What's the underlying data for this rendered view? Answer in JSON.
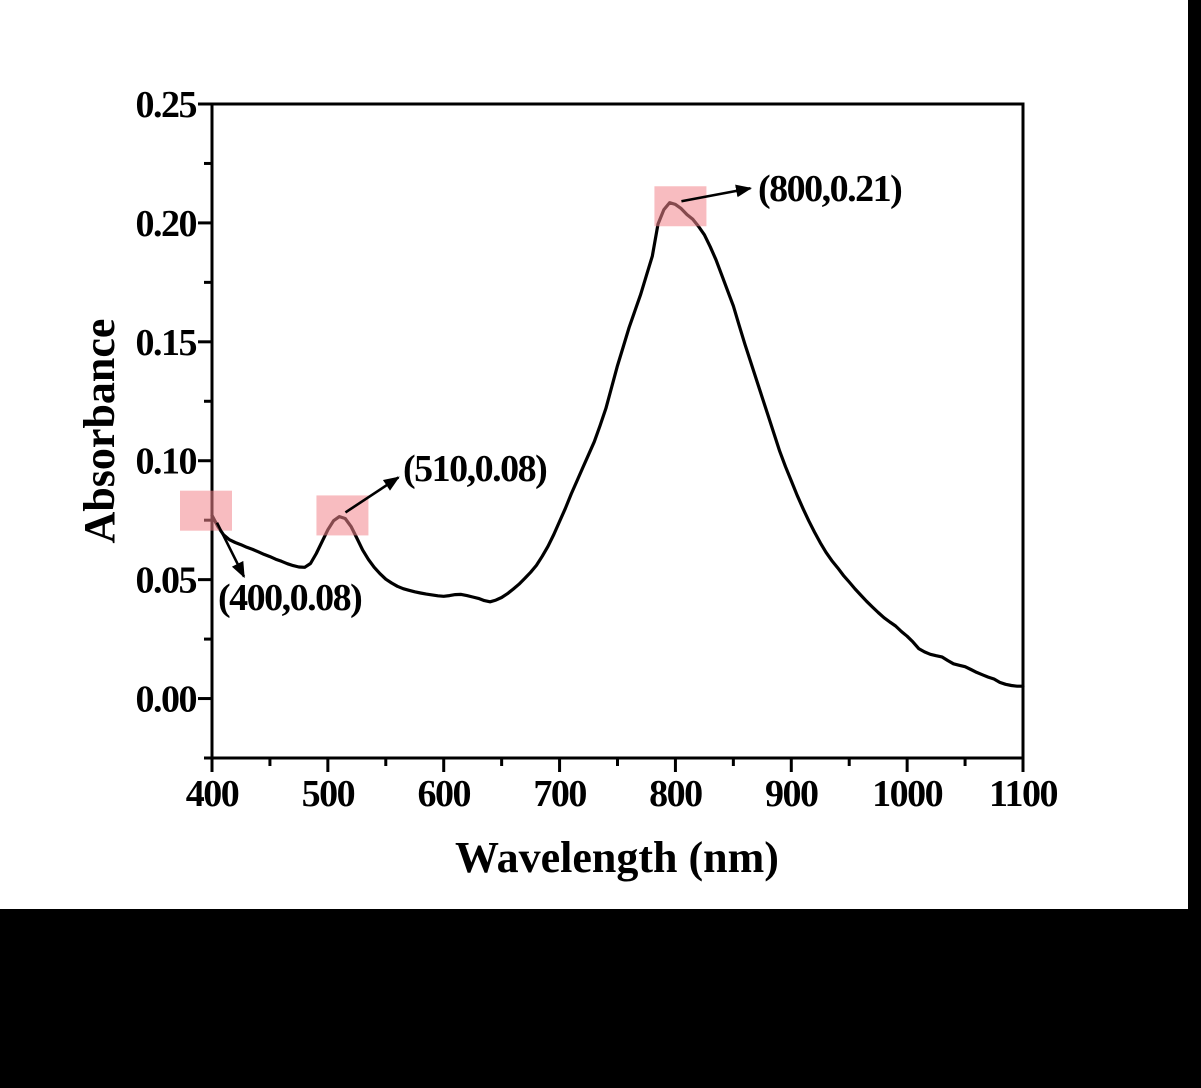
{
  "figure": {
    "page_background": "#000000",
    "plot_background": "#ffffff",
    "axis_color": "#000000"
  },
  "chart_data": {
    "type": "line",
    "title": "",
    "xlabel": "Wavelength (nm)",
    "ylabel": "Absorbance",
    "xlim": [
      400,
      1100
    ],
    "ylim": [
      -0.025,
      0.25
    ],
    "grid": false,
    "legend": null,
    "x_ticks": {
      "major": [
        400,
        500,
        600,
        700,
        800,
        900,
        1000,
        1100
      ],
      "labels": [
        "400",
        "500",
        "600",
        "700",
        "800",
        "900",
        "1000",
        "1100"
      ],
      "minor": [
        450,
        550,
        650,
        750,
        850,
        950,
        1050
      ]
    },
    "y_ticks": {
      "major": [
        0.0,
        0.05,
        0.1,
        0.15,
        0.2,
        0.25
      ],
      "labels": [
        "0.00",
        "0.05",
        "0.10",
        "0.15",
        "0.20",
        "0.25"
      ],
      "minor": [
        -0.025,
        0.025,
        0.075,
        0.125,
        0.175,
        0.225
      ]
    },
    "series": [
      {
        "name": "absorbance-spectrum",
        "color": "#000000",
        "points": [
          [
            400,
            0.077
          ],
          [
            405,
            0.0724
          ],
          [
            410,
            0.0688
          ],
          [
            415,
            0.0668
          ],
          [
            420,
            0.0656
          ],
          [
            425,
            0.0647
          ],
          [
            430,
            0.0636
          ],
          [
            435,
            0.0627
          ],
          [
            440,
            0.0617
          ],
          [
            445,
            0.0606
          ],
          [
            450,
            0.0597
          ],
          [
            455,
            0.0586
          ],
          [
            460,
            0.0577
          ],
          [
            465,
            0.0567
          ],
          [
            470,
            0.0559
          ],
          [
            475,
            0.0553
          ],
          [
            480,
            0.0552
          ],
          [
            485,
            0.0568
          ],
          [
            490,
            0.061
          ],
          [
            495,
            0.066
          ],
          [
            500,
            0.071
          ],
          [
            505,
            0.0748
          ],
          [
            510,
            0.0765
          ],
          [
            515,
            0.0757
          ],
          [
            520,
            0.0724
          ],
          [
            525,
            0.0675
          ],
          [
            530,
            0.0625
          ],
          [
            535,
            0.0585
          ],
          [
            540,
            0.0552
          ],
          [
            545,
            0.0525
          ],
          [
            550,
            0.0502
          ],
          [
            555,
            0.0486
          ],
          [
            560,
            0.0472
          ],
          [
            565,
            0.0462
          ],
          [
            570,
            0.0455
          ],
          [
            575,
            0.0449
          ],
          [
            580,
            0.0444
          ],
          [
            585,
            0.0439
          ],
          [
            590,
            0.0436
          ],
          [
            595,
            0.0432
          ],
          [
            600,
            0.043
          ],
          [
            605,
            0.0433
          ],
          [
            610,
            0.0437
          ],
          [
            615,
            0.0438
          ],
          [
            620,
            0.0433
          ],
          [
            625,
            0.0427
          ],
          [
            630,
            0.0421
          ],
          [
            635,
            0.0412
          ],
          [
            640,
            0.0407
          ],
          [
            645,
            0.0414
          ],
          [
            650,
            0.0425
          ],
          [
            655,
            0.0441
          ],
          [
            660,
            0.046
          ],
          [
            665,
            0.0481
          ],
          [
            670,
            0.0505
          ],
          [
            675,
            0.0531
          ],
          [
            680,
            0.056
          ],
          [
            685,
            0.0598
          ],
          [
            690,
            0.064
          ],
          [
            695,
            0.069
          ],
          [
            700,
            0.0745
          ],
          [
            705,
            0.08
          ],
          [
            710,
            0.086
          ],
          [
            715,
            0.0915
          ],
          [
            720,
            0.097
          ],
          [
            725,
            0.1025
          ],
          [
            730,
            0.108
          ],
          [
            735,
            0.1148
          ],
          [
            740,
            0.122
          ],
          [
            745,
            0.131
          ],
          [
            750,
            0.14
          ],
          [
            755,
            0.148
          ],
          [
            760,
            0.156
          ],
          [
            765,
            0.163
          ],
          [
            770,
            0.17
          ],
          [
            775,
            0.178
          ],
          [
            780,
            0.186
          ],
          [
            785,
            0.1995
          ],
          [
            790,
            0.2055
          ],
          [
            795,
            0.2085
          ],
          [
            800,
            0.2078
          ],
          [
            805,
            0.206
          ],
          [
            810,
            0.2035
          ],
          [
            815,
            0.2015
          ],
          [
            820,
            0.1985
          ],
          [
            825,
            0.195
          ],
          [
            830,
            0.19
          ],
          [
            835,
            0.1845
          ],
          [
            840,
            0.178
          ],
          [
            845,
            0.1715
          ],
          [
            850,
            0.165
          ],
          [
            855,
            0.157
          ],
          [
            860,
            0.149
          ],
          [
            865,
            0.1415
          ],
          [
            870,
            0.134
          ],
          [
            875,
            0.1265
          ],
          [
            880,
            0.119
          ],
          [
            885,
            0.1115
          ],
          [
            890,
            0.104
          ],
          [
            895,
            0.0975
          ],
          [
            900,
            0.0915
          ],
          [
            905,
            0.0855
          ],
          [
            910,
            0.08
          ],
          [
            915,
            0.0748
          ],
          [
            920,
            0.07
          ],
          [
            925,
            0.0655
          ],
          [
            930,
            0.0615
          ],
          [
            935,
            0.058
          ],
          [
            940,
            0.055
          ],
          [
            945,
            0.0518
          ],
          [
            950,
            0.049
          ],
          [
            955,
            0.0461
          ],
          [
            960,
            0.0435
          ],
          [
            965,
            0.0409
          ],
          [
            970,
            0.0385
          ],
          [
            975,
            0.0362
          ],
          [
            980,
            0.034
          ],
          [
            985,
            0.0322
          ],
          [
            990,
            0.0305
          ],
          [
            995,
            0.0282
          ],
          [
            1000,
            0.0262
          ],
          [
            1005,
            0.0238
          ],
          [
            1010,
            0.021
          ],
          [
            1015,
            0.0196
          ],
          [
            1020,
            0.0186
          ],
          [
            1025,
            0.018
          ],
          [
            1030,
            0.0175
          ],
          [
            1035,
            0.016
          ],
          [
            1040,
            0.0146
          ],
          [
            1045,
            0.014
          ],
          [
            1050,
            0.0134
          ],
          [
            1055,
            0.0122
          ],
          [
            1060,
            0.011
          ],
          [
            1065,
            0.01
          ],
          [
            1070,
            0.009
          ],
          [
            1075,
            0.0082
          ],
          [
            1080,
            0.0068
          ],
          [
            1085,
            0.006
          ],
          [
            1090,
            0.0055
          ],
          [
            1095,
            0.0052
          ],
          [
            1100,
            0.0052
          ]
        ]
      }
    ],
    "annotations": [
      {
        "label": "(400,0.08)",
        "x": 400,
        "y": 0.079
      },
      {
        "label": "(510,0.08)",
        "x": 510,
        "y": 0.077
      },
      {
        "label": "(800,0.21)",
        "x": 800,
        "y": 0.207
      }
    ],
    "annotation_marker": {
      "shape": "square",
      "color": "#f2858d",
      "opacity": 0.55
    }
  }
}
